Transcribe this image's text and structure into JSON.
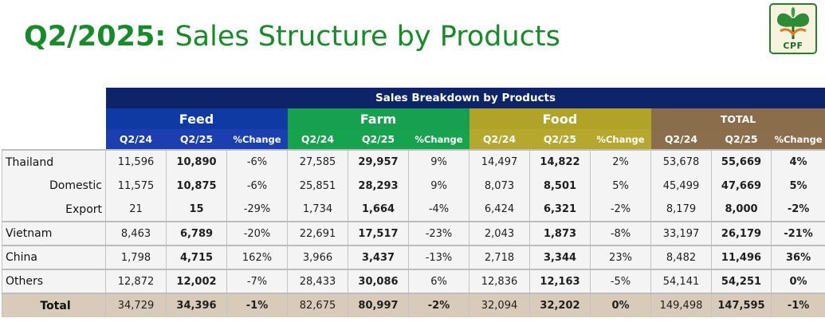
{
  "title": {
    "period": "Q2/2025:",
    "text": "Sales Structure by Products"
  },
  "logo": {
    "text": "CPF"
  },
  "table": {
    "banner": "Sales Breakdown by Products",
    "groups": [
      "Feed",
      "Farm",
      "Food",
      "TOTAL"
    ],
    "subheaders": [
      "Q2/24",
      "Q2/25",
      "%Change"
    ],
    "rows": [
      {
        "label": "Thailand",
        "values": [
          "11,596",
          "10,890",
          "-6%",
          "27,585",
          "29,957",
          "9%",
          "14,497",
          "14,822",
          "2%",
          "53,678",
          "55,669",
          "4%"
        ]
      },
      {
        "label": "Domestic",
        "values": [
          "11,575",
          "10,875",
          "-6%",
          "25,851",
          "28,293",
          "9%",
          "8,073",
          "8,501",
          "5%",
          "45,499",
          "47,669",
          "5%"
        ]
      },
      {
        "label": "Export",
        "values": [
          "21",
          "15",
          "-29%",
          "1,734",
          "1,664",
          "-4%",
          "6,424",
          "6,321",
          "-2%",
          "8,179",
          "8,000",
          "-2%"
        ]
      },
      {
        "label": "Vietnam",
        "values": [
          "8,463",
          "6,789",
          "-20%",
          "22,691",
          "17,517",
          "-23%",
          "2,043",
          "1,873",
          "-8%",
          "33,197",
          "26,179",
          "-21%"
        ]
      },
      {
        "label": "China",
        "values": [
          "1,798",
          "4,715",
          "162%",
          "3,966",
          "3,437",
          "-13%",
          "2,718",
          "3,344",
          "23%",
          "8,482",
          "11,496",
          "36%"
        ]
      },
      {
        "label": "Others",
        "values": [
          "12,872",
          "12,002",
          "-7%",
          "28,433",
          "30,086",
          "6%",
          "12,836",
          "12,163",
          "-5%",
          "54,141",
          "54,251",
          "0%"
        ]
      }
    ],
    "total": {
      "label": "Total",
      "values": [
        "34,729",
        "34,396",
        "-1%",
        "82,675",
        "80,997",
        "-2%",
        "32,094",
        "32,202",
        "0%",
        "149,498",
        "147,595",
        "-1%"
      ]
    }
  }
}
